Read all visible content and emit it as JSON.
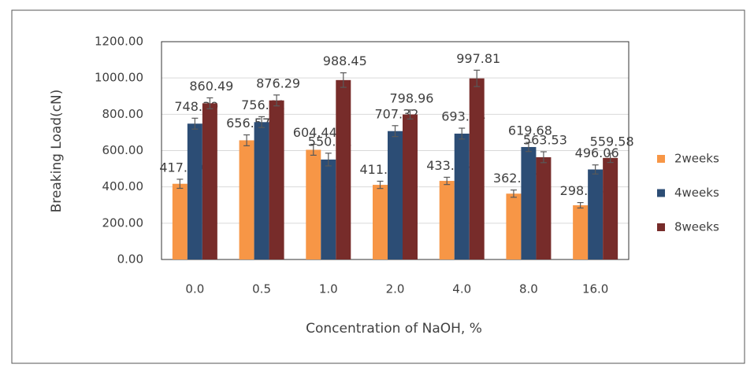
{
  "chart_data": {
    "type": "bar",
    "x_label": "Concentration of NaOH, %",
    "y_label": "Breaking Load(cN)",
    "categories": [
      "0.0",
      "0.5",
      "1.0",
      "2.0",
      "4.0",
      "8.0",
      "16.0"
    ],
    "series": [
      {
        "name": "2weeks",
        "color": "#f79646",
        "values": [
          417.09,
          656.57,
          604.44,
          411.2,
          433.03,
          362.77,
          298.65
        ],
        "value_labels": [
          "417.09",
          "656.57",
          "604.44",
          "411.20",
          "433.03",
          "362.77",
          "298.65"
        ],
        "errors": [
          25,
          30,
          30,
          20,
          20,
          20,
          15
        ]
      },
      {
        "name": "4weeks",
        "color": "#2c4d75",
        "values": [
          748.39,
          756.81,
          550.71,
          707.32,
          693.44,
          619.68,
          496.06
        ],
        "value_labels": [
          "748.39",
          "756.81",
          "550.71",
          "707.32",
          "693.44",
          "619.68",
          "496.06"
        ],
        "errors": [
          30,
          30,
          35,
          30,
          30,
          25,
          25
        ]
      },
      {
        "name": "8weeks",
        "color": "#772c2a",
        "values": [
          860.49,
          876.29,
          988.45,
          798.96,
          997.81,
          563.53,
          559.58
        ],
        "value_labels": [
          "860.49",
          "876.29",
          "988.45",
          "798.96",
          "997.81",
          "563.53",
          "559.58"
        ],
        "errors": [
          30,
          30,
          40,
          25,
          45,
          30,
          25
        ]
      }
    ],
    "ylim": [
      0,
      1200
    ],
    "yticks": [
      {
        "value": 0,
        "label": "0.00"
      },
      {
        "value": 200,
        "label": "200.00"
      },
      {
        "value": 400,
        "label": "400.00"
      },
      {
        "value": 600,
        "label": "600.00"
      },
      {
        "value": 800,
        "label": "800.00"
      },
      {
        "value": 1000,
        "label": "1000.00"
      },
      {
        "value": 1200,
        "label": "1200.00"
      }
    ],
    "grid": true,
    "legend": "right"
  }
}
